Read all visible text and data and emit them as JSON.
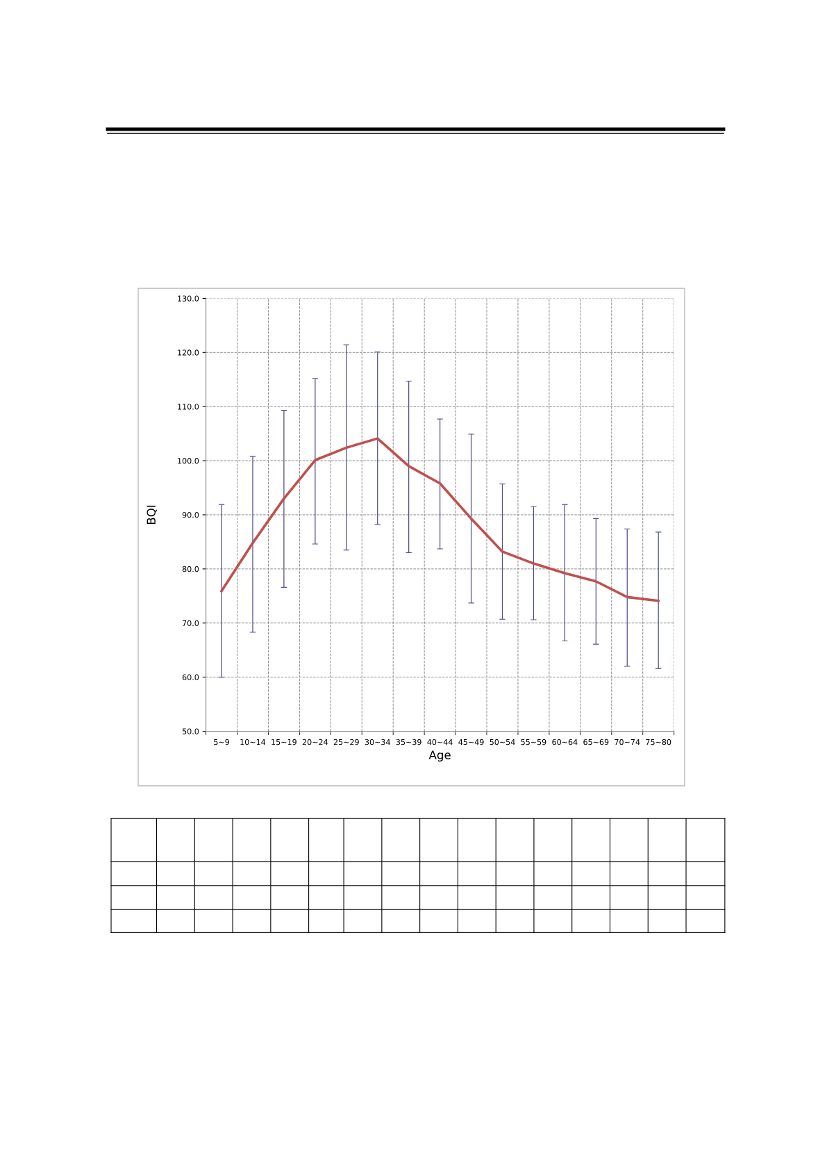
{
  "chart_data": {
    "type": "line",
    "xlabel": "Age",
    "ylabel": "BQI",
    "categories": [
      "5~9",
      "10~14",
      "15~19",
      "20~24",
      "25~29",
      "30~34",
      "35~39",
      "40~44",
      "45~49",
      "50~54",
      "55~59",
      "60~64",
      "65~69",
      "70~74",
      "75~80"
    ],
    "series": [
      {
        "color": "#c0504d",
        "values": [
          75.9,
          84.8,
          93.0,
          100.1,
          102.4,
          104.1,
          99.0,
          95.8,
          89.3,
          83.2,
          81.0,
          79.2,
          77.7,
          74.8,
          74.1
        ],
        "errors": [
          [
            60.0,
            91.9
          ],
          [
            68.3,
            100.8
          ],
          [
            76.6,
            109.3
          ],
          [
            84.6,
            115.2
          ],
          [
            83.5,
            121.4
          ],
          [
            88.2,
            120.1
          ],
          [
            83.0,
            114.7
          ],
          [
            83.7,
            107.7
          ],
          [
            73.7,
            104.9
          ],
          [
            70.7,
            95.7
          ],
          [
            70.6,
            91.5
          ],
          [
            66.7,
            91.9
          ],
          [
            66.1,
            89.3
          ],
          [
            62.0,
            87.4
          ],
          [
            61.6,
            86.8
          ]
        ]
      }
    ],
    "ylim": [
      50,
      130
    ],
    "yticks": [
      {
        "value": 50,
        "label": "50.0"
      },
      {
        "value": 60,
        "label": "60.0"
      },
      {
        "value": 70,
        "label": "70.0"
      },
      {
        "value": 80,
        "label": "80.0"
      },
      {
        "value": 90,
        "label": "90.0"
      },
      {
        "value": 100,
        "label": "100.0"
      },
      {
        "value": 110,
        "label": "110.0"
      },
      {
        "value": 120,
        "label": "120.0"
      },
      {
        "value": 130,
        "label": "130.0"
      }
    ],
    "grid": true,
    "marker": "none",
    "line_style": "solid",
    "legend": false
  }
}
